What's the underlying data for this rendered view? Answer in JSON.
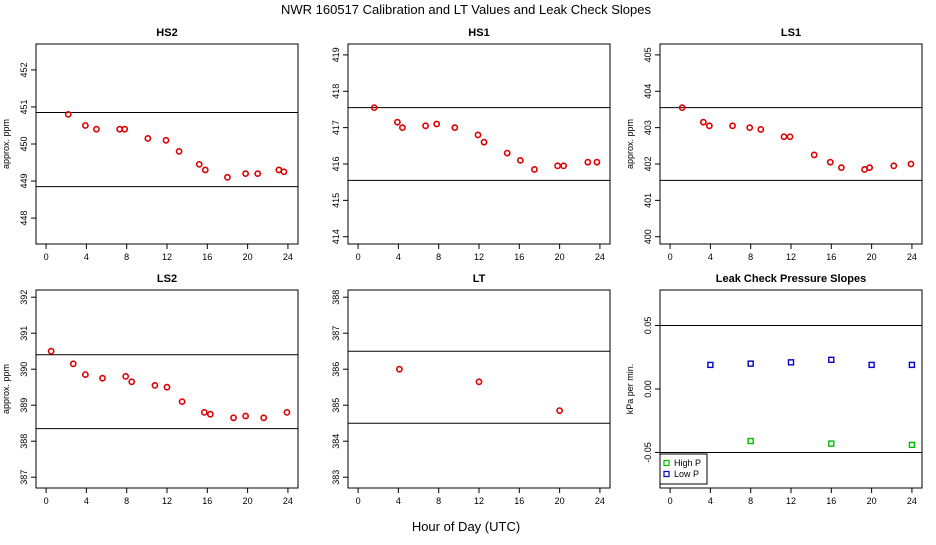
{
  "page": {
    "title": "NWR  160517  Calibration and LT Values and Leak Check Slopes",
    "xlabel": "Hour of Day (UTC)"
  },
  "chart_data": [
    {
      "type": "scatter",
      "title": "HS2",
      "ylabel": "approx. ppm",
      "xlim": [
        -1,
        25
      ],
      "ylim": [
        447.3,
        452.7
      ],
      "xticks": [
        0,
        4,
        8,
        12,
        16,
        20,
        24
      ],
      "yticks": [
        448,
        449,
        450,
        451,
        452
      ],
      "hlines": [
        450.85,
        448.85
      ],
      "series": [
        {
          "color": "#dd0000",
          "points": [
            [
              2.2,
              450.8
            ],
            [
              3.9,
              450.5
            ],
            [
              5.0,
              450.4
            ],
            [
              7.3,
              450.4
            ],
            [
              7.8,
              450.4
            ],
            [
              10.1,
              450.15
            ],
            [
              11.9,
              450.1
            ],
            [
              13.2,
              449.8
            ],
            [
              15.2,
              449.45
            ],
            [
              15.8,
              449.3
            ],
            [
              18.0,
              449.1
            ],
            [
              19.8,
              449.2
            ],
            [
              21.0,
              449.2
            ],
            [
              23.1,
              449.3
            ],
            [
              23.6,
              449.25
            ]
          ]
        }
      ]
    },
    {
      "type": "scatter",
      "title": "HS1",
      "ylabel": "",
      "xlim": [
        -1,
        25
      ],
      "ylim": [
        413.8,
        419.3
      ],
      "xticks": [
        0,
        4,
        8,
        12,
        16,
        20,
        24
      ],
      "yticks": [
        414,
        415,
        416,
        417,
        418,
        419
      ],
      "hlines": [
        417.55,
        415.55
      ],
      "series": [
        {
          "color": "#dd0000",
          "points": [
            [
              1.6,
              417.55
            ],
            [
              3.9,
              417.15
            ],
            [
              4.4,
              417.0
            ],
            [
              6.7,
              417.05
            ],
            [
              7.8,
              417.1
            ],
            [
              9.6,
              417.0
            ],
            [
              11.9,
              416.8
            ],
            [
              12.5,
              416.6
            ],
            [
              14.8,
              416.3
            ],
            [
              16.1,
              416.1
            ],
            [
              17.5,
              415.85
            ],
            [
              19.8,
              415.95
            ],
            [
              20.4,
              415.95
            ],
            [
              22.8,
              416.05
            ],
            [
              23.7,
              416.05
            ]
          ]
        }
      ]
    },
    {
      "type": "scatter",
      "title": "LS1",
      "ylabel": "approx. ppm",
      "xlim": [
        -1,
        25
      ],
      "ylim": [
        399.8,
        405.3
      ],
      "xticks": [
        0,
        4,
        8,
        12,
        16,
        20,
        24
      ],
      "yticks": [
        400,
        401,
        402,
        403,
        404,
        405
      ],
      "hlines": [
        403.55,
        401.55
      ],
      "series": [
        {
          "color": "#dd0000",
          "points": [
            [
              1.2,
              403.55
            ],
            [
              3.3,
              403.15
            ],
            [
              3.9,
              403.05
            ],
            [
              6.2,
              403.05
            ],
            [
              7.9,
              403.0
            ],
            [
              9.0,
              402.95
            ],
            [
              11.3,
              402.75
            ],
            [
              11.9,
              402.75
            ],
            [
              14.3,
              402.25
            ],
            [
              15.9,
              402.05
            ],
            [
              17.0,
              401.9
            ],
            [
              19.3,
              401.85
            ],
            [
              19.8,
              401.9
            ],
            [
              22.2,
              401.95
            ],
            [
              23.9,
              402.0
            ]
          ]
        }
      ]
    },
    {
      "type": "scatter",
      "title": "LS2",
      "ylabel": "approx. ppm",
      "xlim": [
        -1,
        25
      ],
      "ylim": [
        386.7,
        392.2
      ],
      "xticks": [
        0,
        4,
        8,
        12,
        16,
        20,
        24
      ],
      "yticks": [
        387,
        388,
        389,
        390,
        391,
        392
      ],
      "hlines": [
        390.4,
        388.35
      ],
      "series": [
        {
          "color": "#dd0000",
          "points": [
            [
              0.5,
              390.5
            ],
            [
              2.7,
              390.15
            ],
            [
              3.9,
              389.85
            ],
            [
              5.6,
              389.75
            ],
            [
              7.9,
              389.8
            ],
            [
              8.5,
              389.65
            ],
            [
              10.8,
              389.55
            ],
            [
              12.0,
              389.5
            ],
            [
              13.5,
              389.1
            ],
            [
              15.7,
              388.8
            ],
            [
              16.3,
              388.75
            ],
            [
              18.6,
              388.65
            ],
            [
              19.8,
              388.7
            ],
            [
              21.6,
              388.65
            ],
            [
              23.9,
              388.8
            ]
          ]
        }
      ]
    },
    {
      "type": "scatter",
      "title": "LT",
      "ylabel": "",
      "xlim": [
        -1,
        25
      ],
      "ylim": [
        382.7,
        388.2
      ],
      "xticks": [
        0,
        4,
        8,
        12,
        16,
        20,
        24
      ],
      "yticks": [
        383,
        384,
        385,
        386,
        387,
        388
      ],
      "hlines": [
        386.5,
        384.5
      ],
      "series": [
        {
          "color": "#dd0000",
          "points": [
            [
              4.1,
              386.0
            ],
            [
              12.0,
              385.65
            ],
            [
              20.0,
              384.85
            ]
          ]
        }
      ]
    },
    {
      "type": "scatter",
      "title": "Leak Check Pressure Slopes",
      "ylabel": "kPa per min.",
      "xlim": [
        -1,
        25
      ],
      "ylim": [
        -0.078,
        0.078
      ],
      "xticks": [
        0,
        4,
        8,
        12,
        16,
        20,
        24
      ],
      "yticks": [
        -0.05,
        0.0,
        0.05
      ],
      "ytick_labels": [
        "-0.05",
        "0.00",
        "0.05"
      ],
      "hlines": [
        0.05,
        -0.05
      ],
      "legend": {
        "position": "bottom-left"
      },
      "series": [
        {
          "name": "High P",
          "color": "#00bb00",
          "points": [
            [
              8.0,
              -0.041
            ],
            [
              16.0,
              -0.043
            ],
            [
              24.0,
              -0.044
            ]
          ]
        },
        {
          "name": "Low P",
          "color": "#0000cc",
          "points": [
            [
              4.0,
              0.019
            ],
            [
              8.0,
              0.02
            ],
            [
              12.0,
              0.021
            ],
            [
              16.0,
              0.023
            ],
            [
              20.0,
              0.019
            ],
            [
              24.0,
              0.019
            ]
          ]
        }
      ]
    }
  ]
}
